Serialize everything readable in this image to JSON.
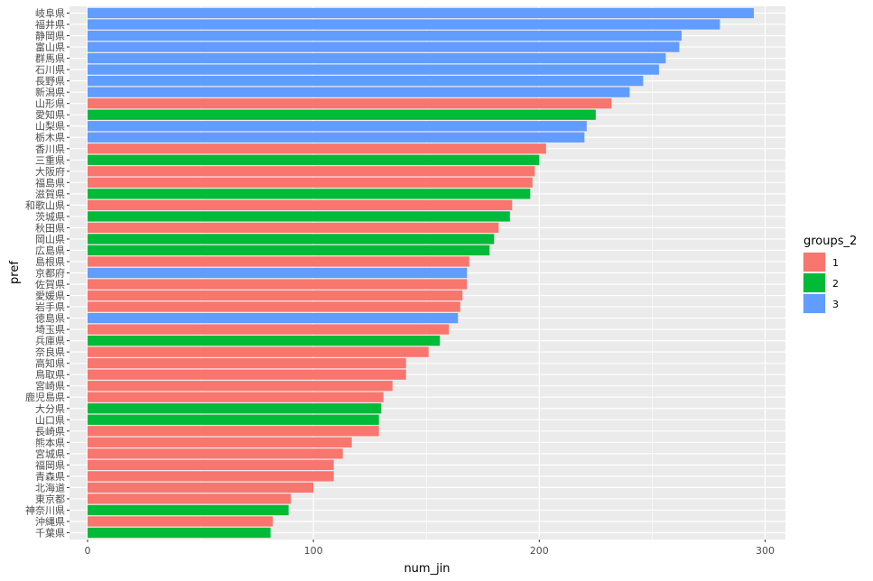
{
  "chart_data": {
    "type": "bar",
    "orientation": "horizontal",
    "xlabel": "num_jin",
    "ylabel": "pref",
    "xlim": [
      -8,
      309
    ],
    "x_ticks": [
      0,
      100,
      200,
      300
    ],
    "x_tick_labels": [
      "0",
      "100",
      "200",
      "300"
    ],
    "grid": true,
    "legend": {
      "title": "groups_2",
      "position": "right",
      "entries": [
        {
          "label": "1",
          "color": "#F8766D"
        },
        {
          "label": "2",
          "color": "#00BA38"
        },
        {
          "label": "3",
          "color": "#619CFF"
        }
      ]
    },
    "colors": {
      "1": "#F8766D",
      "2": "#00BA38",
      "3": "#619CFF"
    },
    "categories": [
      "岐阜県",
      "福井県",
      "静岡県",
      "富山県",
      "群馬県",
      "石川県",
      "長野県",
      "新潟県",
      "山形県",
      "愛知県",
      "山梨県",
      "栃木県",
      "香川県",
      "三重県",
      "大阪府",
      "福島県",
      "滋賀県",
      "和歌山県",
      "茨城県",
      "秋田県",
      "岡山県",
      "広島県",
      "島根県",
      "京都府",
      "佐賀県",
      "愛媛県",
      "岩手県",
      "徳島県",
      "埼玉県",
      "兵庫県",
      "奈良県",
      "高知県",
      "鳥取県",
      "宮崎県",
      "鹿児島県",
      "大分県",
      "山口県",
      "長崎県",
      "熊本県",
      "宮城県",
      "福岡県",
      "青森県",
      "北海道",
      "東京都",
      "神奈川県",
      "沖縄県",
      "千葉県"
    ],
    "values": [
      295,
      280,
      263,
      262,
      256,
      253,
      246,
      240,
      232,
      225,
      221,
      220,
      203,
      200,
      198,
      197,
      196,
      188,
      187,
      182,
      180,
      178,
      169,
      168,
      168,
      166,
      165,
      164,
      160,
      156,
      151,
      141,
      141,
      135,
      131,
      130,
      129,
      129,
      117,
      113,
      109,
      109,
      100,
      90,
      89,
      82,
      81
    ],
    "groups": [
      "3",
      "3",
      "3",
      "3",
      "3",
      "3",
      "3",
      "3",
      "1",
      "2",
      "3",
      "3",
      "1",
      "2",
      "1",
      "1",
      "2",
      "1",
      "2",
      "1",
      "2",
      "2",
      "1",
      "3",
      "1",
      "1",
      "1",
      "3",
      "1",
      "2",
      "1",
      "1",
      "1",
      "1",
      "1",
      "2",
      "2",
      "1",
      "1",
      "1",
      "1",
      "1",
      "1",
      "1",
      "2",
      "1",
      "2"
    ]
  }
}
